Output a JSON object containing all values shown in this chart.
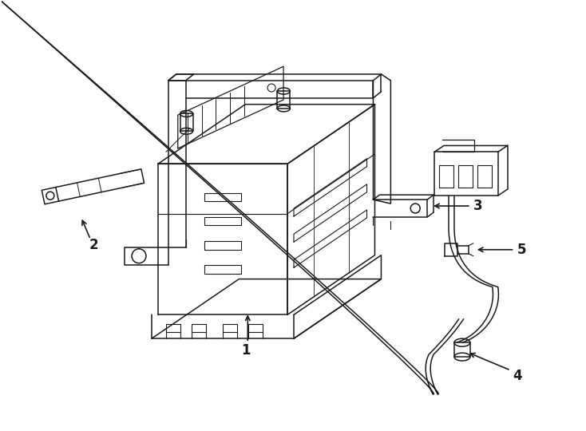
{
  "bg_color": "#ffffff",
  "line_color": "#1a1a1a",
  "lw": 1.1,
  "fig_w": 7.34,
  "fig_h": 5.4,
  "dpi": 100
}
